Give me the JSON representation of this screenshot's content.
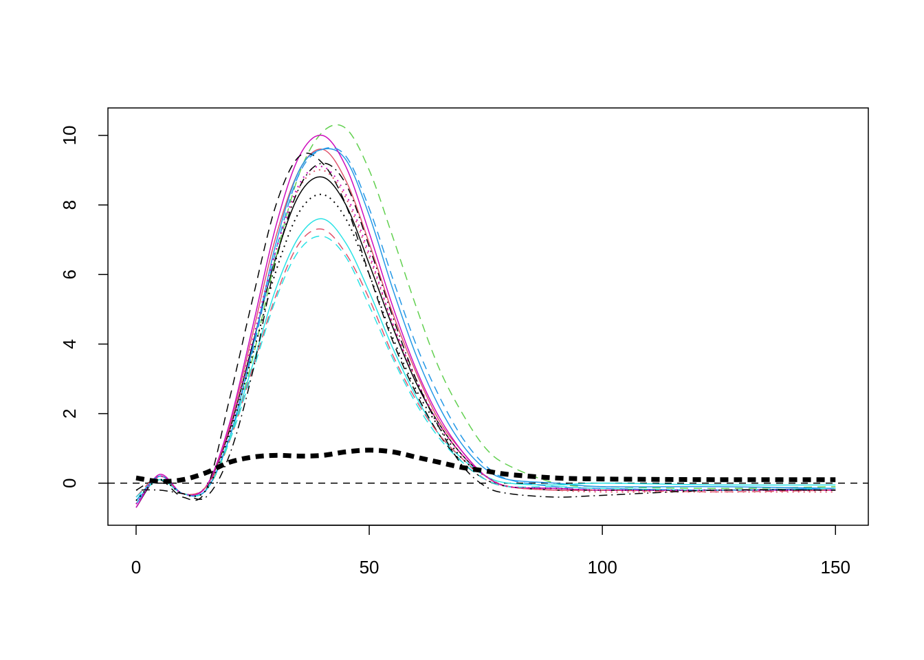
{
  "chart_data": {
    "type": "line",
    "x": [
      0,
      5,
      10,
      15,
      20,
      25,
      30,
      35,
      40,
      45,
      50,
      55,
      60,
      65,
      70,
      75,
      80,
      90,
      100,
      125,
      150
    ],
    "xlim": [
      -6.04,
      157.04
    ],
    "xticks": [
      0,
      50,
      100,
      150
    ],
    "ylim": [
      -1.21,
      10.79
    ],
    "yticks": [
      0,
      2,
      4,
      6,
      8,
      10
    ],
    "hline": 0,
    "series": [
      {
        "color": "#000000",
        "dash": "solid",
        "width": 1.5,
        "values": [
          -0.7,
          0.2,
          -0.3,
          -0.1,
          1.5,
          4.0,
          6.5,
          8.3,
          8.8,
          8.0,
          6.3,
          4.5,
          2.9,
          1.7,
          0.8,
          0.2,
          -0.1,
          -0.15,
          -0.2,
          -0.2,
          -0.15
        ]
      },
      {
        "color": "#DF536B",
        "dash": "solid",
        "width": 1.5,
        "values": [
          -0.6,
          0.2,
          -0.3,
          -0.1,
          1.6,
          4.3,
          7.1,
          9.0,
          9.6,
          8.7,
          6.9,
          4.9,
          3.2,
          1.8,
          0.9,
          0.2,
          -0.1,
          -0.2,
          -0.2,
          -0.2,
          -0.2
        ]
      },
      {
        "color": "#61D04F",
        "dash": "dashed",
        "width": 1.5,
        "values": [
          -0.5,
          0.1,
          -0.3,
          -0.2,
          1.2,
          3.6,
          6.5,
          8.9,
          10.1,
          10.2,
          9.0,
          7.1,
          5.1,
          3.3,
          2.0,
          1.0,
          0.5,
          0.0,
          -0.1,
          -0.15,
          -0.1
        ]
      },
      {
        "color": "#2297E6",
        "dash": "solid",
        "width": 1.5,
        "values": [
          -0.6,
          0.2,
          -0.3,
          -0.2,
          1.3,
          3.9,
          6.9,
          9.0,
          9.6,
          9.3,
          7.7,
          5.6,
          3.7,
          2.2,
          1.1,
          0.4,
          0.1,
          0.0,
          -0.1,
          -0.1,
          -0.15
        ]
      },
      {
        "color": "#28E2E5",
        "dash": "solid",
        "width": 1.5,
        "values": [
          -0.5,
          0.1,
          -0.3,
          -0.2,
          1.3,
          3.4,
          5.6,
          7.1,
          7.6,
          6.9,
          5.5,
          3.9,
          2.5,
          1.4,
          0.7,
          0.2,
          0.0,
          -0.05,
          0.0,
          -0.05,
          -0.05
        ]
      },
      {
        "color": "#CD0BBC",
        "dash": "solid",
        "width": 1.5,
        "values": [
          -0.7,
          0.25,
          -0.3,
          -0.1,
          1.7,
          4.5,
          7.4,
          9.4,
          10.0,
          9.1,
          7.2,
          5.1,
          3.3,
          1.9,
          0.9,
          0.2,
          -0.1,
          -0.15,
          -0.2,
          -0.2,
          -0.2
        ]
      },
      {
        "color": "#000000",
        "dash": "dashed",
        "width": 1.5,
        "values": [
          -0.2,
          0.1,
          -0.4,
          -0.2,
          2.4,
          5.3,
          8.0,
          9.4,
          9.2,
          8.0,
          6.0,
          4.1,
          2.6,
          1.4,
          0.6,
          0.1,
          -0.1,
          -0.2,
          -0.2,
          -0.2,
          -0.2
        ]
      },
      {
        "color": "#DF536B",
        "dash": "dashed",
        "width": 1.5,
        "values": [
          -0.4,
          0.2,
          -0.3,
          -0.1,
          1.2,
          3.3,
          5.4,
          6.9,
          7.3,
          6.6,
          5.3,
          3.7,
          2.4,
          1.4,
          0.7,
          0.1,
          -0.1,
          -0.2,
          -0.2,
          -0.25,
          -0.2
        ]
      },
      {
        "color": "#28E2E5",
        "dash": "dashed",
        "width": 1.5,
        "values": [
          -0.4,
          0.1,
          -0.3,
          -0.2,
          1.2,
          3.2,
          5.3,
          6.7,
          7.1,
          6.5,
          5.1,
          3.6,
          2.3,
          1.3,
          0.6,
          0.1,
          -0.1,
          -0.1,
          -0.15,
          -0.2,
          -0.15
        ]
      },
      {
        "color": "#2297E6",
        "dash": "dashed",
        "width": 1.5,
        "values": [
          -0.5,
          0.2,
          -0.3,
          -0.2,
          1.3,
          3.8,
          6.7,
          8.9,
          9.6,
          9.4,
          7.9,
          5.9,
          4.0,
          2.5,
          1.3,
          0.5,
          0.1,
          -0.1,
          -0.15,
          -0.2,
          -0.15
        ]
      },
      {
        "color": "#000000",
        "dash": "dotted",
        "width": 2,
        "values": [
          -0.5,
          0.1,
          -0.3,
          -0.2,
          1.4,
          3.7,
          6.1,
          7.8,
          8.3,
          7.6,
          6.0,
          4.2,
          2.7,
          1.6,
          0.7,
          0.2,
          -0.1,
          -0.15,
          -0.2,
          -0.2,
          -0.2
        ]
      },
      {
        "color": "#DF536B",
        "dash": "dotted",
        "width": 2,
        "values": [
          -0.6,
          0.2,
          -0.3,
          -0.1,
          1.5,
          4.1,
          6.7,
          8.5,
          9.0,
          8.2,
          6.5,
          4.6,
          3.0,
          1.7,
          0.8,
          0.2,
          -0.1,
          -0.2,
          -0.25,
          -0.25,
          -0.25
        ]
      },
      {
        "color": "#CD0BBC",
        "dash": "dotted",
        "width": 2,
        "values": [
          -0.6,
          0.2,
          -0.3,
          -0.1,
          1.5,
          4.1,
          6.7,
          8.6,
          9.1,
          8.3,
          6.6,
          4.6,
          3.0,
          1.7,
          0.8,
          0.2,
          -0.1,
          -0.15,
          -0.2,
          -0.2,
          -0.2
        ]
      },
      {
        "color": "#000000",
        "dash": "dotdash",
        "width": 1.5,
        "values": [
          -0.2,
          -0.2,
          -0.3,
          -0.4,
          0.8,
          3.2,
          6.4,
          8.5,
          9.2,
          8.6,
          6.8,
          4.8,
          3.0,
          1.6,
          0.5,
          -0.1,
          -0.3,
          -0.4,
          -0.35,
          -0.2,
          -0.2
        ]
      },
      {
        "color": "#000000",
        "dash": "dashed",
        "width": 7,
        "values": [
          0.15,
          0.05,
          0.1,
          0.3,
          0.6,
          0.75,
          0.8,
          0.78,
          0.8,
          0.9,
          0.95,
          0.9,
          0.75,
          0.6,
          0.45,
          0.35,
          0.25,
          0.15,
          0.12,
          0.1,
          0.1
        ]
      }
    ]
  }
}
